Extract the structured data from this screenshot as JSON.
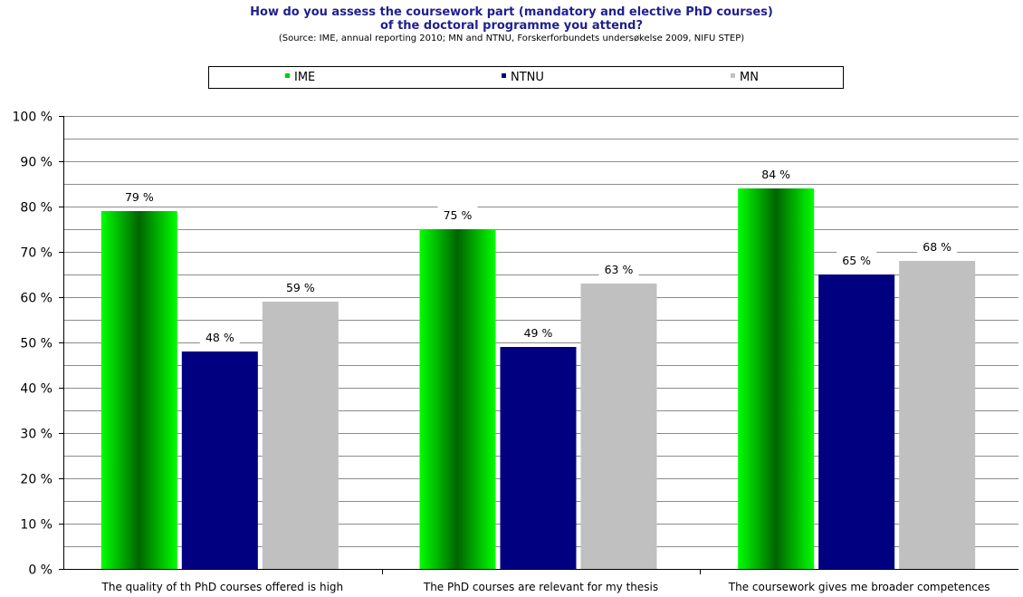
{
  "title_line1": "How do you assess the coursework part (mandatory and elective PhD courses)",
  "title_line2": "of the doctoral programme you attend?",
  "subtitle": "(Source: IME, annual reporting 2010; MN and NTNU, Forskerforbundets undersøkelse 2009, NIFU STEP)",
  "legend": [
    {
      "name": "IME",
      "color": "#00cc00"
    },
    {
      "name": "NTNU",
      "color": "#000080"
    },
    {
      "name": "MN",
      "color": "#c0c0c0"
    }
  ],
  "chart_data": {
    "type": "bar",
    "categories": [
      "The quality of th PhD courses offered is high",
      "The PhD courses are relevant for my thesis",
      "The coursework gives me broader competences"
    ],
    "series": [
      {
        "name": "IME",
        "values": [
          79,
          75,
          84
        ],
        "labels": [
          "79 %",
          "75 %",
          "84 %"
        ],
        "color": "#00cc00"
      },
      {
        "name": "NTNU",
        "values": [
          48,
          49,
          65
        ],
        "labels": [
          "48 %",
          "49 %",
          "65 %"
        ],
        "color": "#000080"
      },
      {
        "name": "MN",
        "values": [
          59,
          63,
          68
        ],
        "labels": [
          "59 %",
          "63 %",
          "68 %"
        ],
        "color": "#c0c0c0"
      }
    ],
    "yticks": [
      "0 %",
      "10 %",
      "20 %",
      "30 %",
      "40 %",
      "50 %",
      "60 %",
      "70 %",
      "80 %",
      "90 %",
      "100 %"
    ],
    "ylim": [
      0,
      100
    ],
    "grid": true,
    "legend_position": "top"
  }
}
